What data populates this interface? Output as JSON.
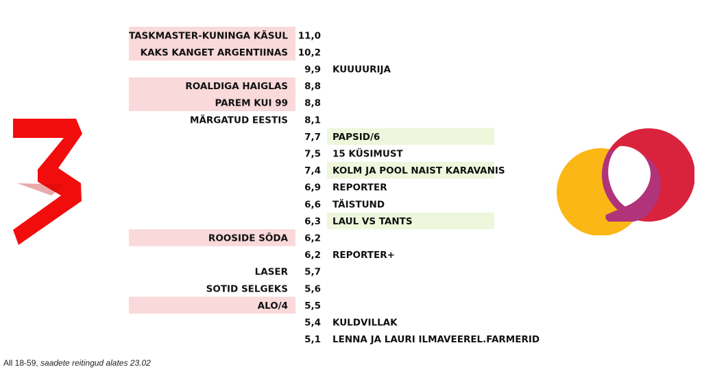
{
  "chart_data": {
    "type": "table",
    "rows": [
      {
        "value": "11,0",
        "left": "TASKMASTER-KUNINGA KÄSUL",
        "right": "",
        "highlight": "left"
      },
      {
        "value": "10,2",
        "left": "KAKS KANGET ARGENTIINAS",
        "right": "",
        "highlight": "left"
      },
      {
        "value": "9,9",
        "left": "",
        "right": "KUUUURIJA",
        "highlight": ""
      },
      {
        "value": "8,8",
        "left": "ROALDIGA HAIGLAS",
        "right": "",
        "highlight": "left"
      },
      {
        "value": "8,8",
        "left": "PAREM KUI 99",
        "right": "",
        "highlight": "left"
      },
      {
        "value": "8,1",
        "left": "MÄRGATUD EESTIS",
        "right": "",
        "highlight": ""
      },
      {
        "value": "7,7",
        "left": "",
        "right": "PAPSID/6",
        "highlight": "right"
      },
      {
        "value": "7,5",
        "left": "",
        "right": "15 KÜSIMUST",
        "highlight": ""
      },
      {
        "value": "7,4",
        "left": "",
        "right": "KOLM JA POOL NAIST KARAVANIS",
        "highlight": "right"
      },
      {
        "value": "6,9",
        "left": "",
        "right": "REPORTER",
        "highlight": ""
      },
      {
        "value": "6,6",
        "left": "",
        "right": "TÄISTUND",
        "highlight": ""
      },
      {
        "value": "6,3",
        "left": "",
        "right": "LAUL VS TANTS",
        "highlight": "right"
      },
      {
        "value": "6,2",
        "left": "ROOSIDE SÕDA",
        "right": "",
        "highlight": "left"
      },
      {
        "value": "6,2",
        "left": "",
        "right": "REPORTER+",
        "highlight": ""
      },
      {
        "value": "5,7",
        "left": "LASER",
        "right": "",
        "highlight": ""
      },
      {
        "value": "5,6",
        "left": "SOTID SELGEKS",
        "right": "",
        "highlight": ""
      },
      {
        "value": "5,5",
        "left": "ALO/4",
        "right": "",
        "highlight": "left"
      },
      {
        "value": "5,4",
        "left": "",
        "right": "KULDVILLAK",
        "highlight": ""
      },
      {
        "value": "5,1",
        "left": "",
        "right": "LENNA JA LAURI ILMAVEEREL.FARMERID",
        "highlight": ""
      }
    ],
    "colors": {
      "left_highlight": "#f9d9da",
      "right_highlight": "#eef6dc",
      "text": "#111111"
    }
  },
  "footnote": {
    "prefix": "All 18-59, ",
    "italic": "saadete reitingud alates 23.02"
  },
  "logos": {
    "left": {
      "icon": "tv3-logo-icon",
      "color": "#f20d0d"
    },
    "right": {
      "icon": "err-logo-icon",
      "colors": [
        "#fbb715",
        "#d9233d",
        "#b1337a"
      ]
    }
  }
}
